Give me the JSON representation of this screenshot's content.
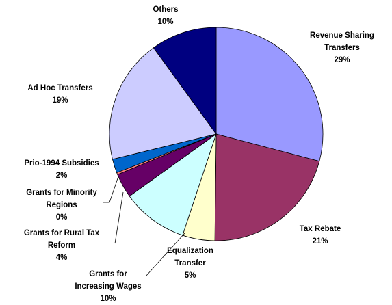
{
  "chart_data": {
    "type": "pie",
    "title": "",
    "slices": [
      {
        "label_lines": [
          "Revenue Sharing",
          "Transfers"
        ],
        "pct_label": "29%",
        "value": 29.1,
        "color": "#9999ff"
      },
      {
        "label_lines": [
          "Tax Rebate"
        ],
        "pct_label": "21%",
        "value": 21.1,
        "color": "#993366"
      },
      {
        "label_lines": [
          "Equalization",
          "Transfer"
        ],
        "pct_label": "5%",
        "value": 4.9,
        "color": "#ffffcc"
      },
      {
        "label_lines": [
          "Grants for",
          "Increasing Wages"
        ],
        "pct_label": "10%",
        "value": 10.0,
        "color": "#ccffff"
      },
      {
        "label_lines": [
          "Grants for Rural Tax",
          "Reform"
        ],
        "pct_label": "4%",
        "value": 3.7,
        "color": "#660066"
      },
      {
        "label_lines": [
          "Grants for Minority",
          "Regions"
        ],
        "pct_label": "0%",
        "value": 0.3,
        "color": "#ff8080"
      },
      {
        "label_lines": [
          "Prio-1994 Subsidies"
        ],
        "pct_label": "2%",
        "value": 2.1,
        "color": "#0066cc"
      },
      {
        "label_lines": [
          "Ad Hoc Transfers"
        ],
        "pct_label": "19%",
        "value": 18.8,
        "color": "#ccccff"
      },
      {
        "label_lines": [
          "Others"
        ],
        "pct_label": "10%",
        "value": 10.0,
        "color": "#000080"
      }
    ],
    "legend": "none",
    "start_angle": "12 o'clock",
    "direction": "clockwise"
  }
}
